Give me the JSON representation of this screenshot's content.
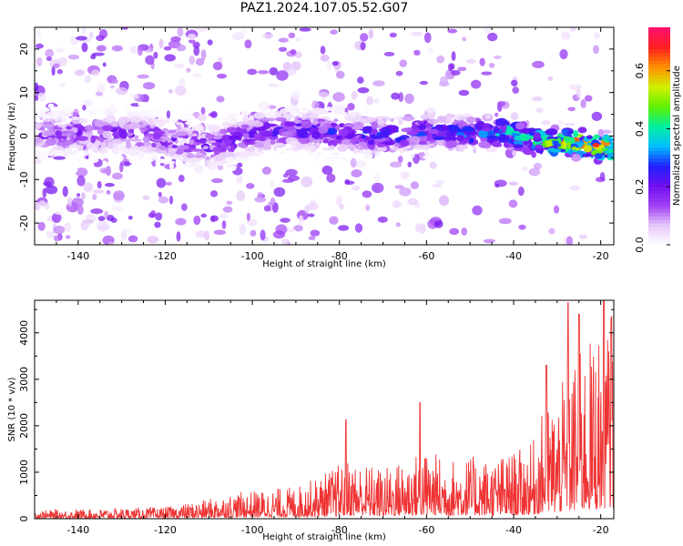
{
  "title": "PAZ1.2024.107.05.52.G07",
  "chart_data": [
    {
      "type": "heatmap",
      "xlabel": "Height of straight line (km)",
      "ylabel": "Frequency (Hz)",
      "xlim": [
        -150,
        -17
      ],
      "ylim": [
        -25,
        25
      ],
      "xticks": [
        -140,
        -120,
        -100,
        -80,
        -60,
        -40,
        -20
      ],
      "yticks": [
        -20,
        -10,
        0,
        10,
        20
      ],
      "colorbar": {
        "label": "Normalized spectral amplitude",
        "range": [
          0.0,
          0.75
        ],
        "ticks": [
          "0.0",
          "0.2",
          "0.4",
          "0.6"
        ],
        "tick_values": [
          0.0,
          0.2,
          0.4,
          0.6
        ],
        "colors": [
          "#ffffff",
          "#e6c8fa",
          "#a040f5",
          "#7010f0",
          "#2020ff",
          "#00c0ff",
          "#00f0a0",
          "#60f000",
          "#d0f000",
          "#ff9000",
          "#ff2020",
          "#ff1070"
        ]
      },
      "ridge": [
        {
          "x": -150,
          "f": 0.5
        },
        {
          "x": -140,
          "f": 0.5
        },
        {
          "x": -130,
          "f": 1.0
        },
        {
          "x": -120,
          "f": -0.5
        },
        {
          "x": -110,
          "f": -2.5
        },
        {
          "x": -100,
          "f": 0.5
        },
        {
          "x": -90,
          "f": 1.5
        },
        {
          "x": -80,
          "f": 0.5
        },
        {
          "x": -70,
          "f": 0.0
        },
        {
          "x": -60,
          "f": 1.0
        },
        {
          "x": -50,
          "f": 0.5
        },
        {
          "x": -42,
          "f": 1.0
        },
        {
          "x": -35,
          "f": -1.0
        },
        {
          "x": -30,
          "f": -1.5
        },
        {
          "x": -25,
          "f": -1.5
        },
        {
          "x": -20,
          "f": -2.5
        },
        {
          "x": -17,
          "f": -3.0
        }
      ],
      "peak_amplitude": [
        {
          "x": -150,
          "a": 0.2
        },
        {
          "x": -120,
          "a": 0.22
        },
        {
          "x": -100,
          "a": 0.25
        },
        {
          "x": -80,
          "a": 0.3
        },
        {
          "x": -60,
          "a": 0.32
        },
        {
          "x": -45,
          "a": 0.4
        },
        {
          "x": -35,
          "a": 0.5
        },
        {
          "x": -28,
          "a": 0.65
        },
        {
          "x": -22,
          "a": 0.72
        },
        {
          "x": -17,
          "a": 0.7
        }
      ]
    },
    {
      "type": "line",
      "xlabel": "Height of straight line (km)",
      "ylabel": "SNR (10 * v/v)",
      "xlim": [
        -150,
        -17
      ],
      "ylim": [
        0,
        4700
      ],
      "xticks": [
        -140,
        -120,
        -100,
        -80,
        -60,
        -40,
        -20
      ],
      "yticks": [
        0,
        1000,
        2000,
        3000,
        4000
      ],
      "color": "#ee3333",
      "envelope": [
        {
          "x": -150,
          "y": 180
        },
        {
          "x": -140,
          "y": 200
        },
        {
          "x": -130,
          "y": 230
        },
        {
          "x": -120,
          "y": 250
        },
        {
          "x": -112,
          "y": 380
        },
        {
          "x": -105,
          "y": 550
        },
        {
          "x": -100,
          "y": 600
        },
        {
          "x": -90,
          "y": 700
        },
        {
          "x": -85,
          "y": 900
        },
        {
          "x": -78,
          "y": 1300
        },
        {
          "x": -70,
          "y": 1100
        },
        {
          "x": -65,
          "y": 1300
        },
        {
          "x": -60,
          "y": 1500
        },
        {
          "x": -55,
          "y": 1300
        },
        {
          "x": -50,
          "y": 1350
        },
        {
          "x": -45,
          "y": 1300
        },
        {
          "x": -40,
          "y": 1450
        },
        {
          "x": -36,
          "y": 1600
        },
        {
          "x": -33,
          "y": 2400
        },
        {
          "x": -30,
          "y": 2700
        },
        {
          "x": -27,
          "y": 3300
        },
        {
          "x": -24,
          "y": 3700
        },
        {
          "x": -21,
          "y": 4000
        },
        {
          "x": -19,
          "y": 4500
        },
        {
          "x": -17,
          "y": 4300
        }
      ],
      "peaks": [
        {
          "x": -78.5,
          "y": 2130
        },
        {
          "x": -61.5,
          "y": 2500
        },
        {
          "x": -32.5,
          "y": 3300
        },
        {
          "x": -27.5,
          "y": 4650
        },
        {
          "x": -25.0,
          "y": 4400
        },
        {
          "x": -19.3,
          "y": 4700
        },
        {
          "x": -17.5,
          "y": 4350
        }
      ]
    }
  ]
}
